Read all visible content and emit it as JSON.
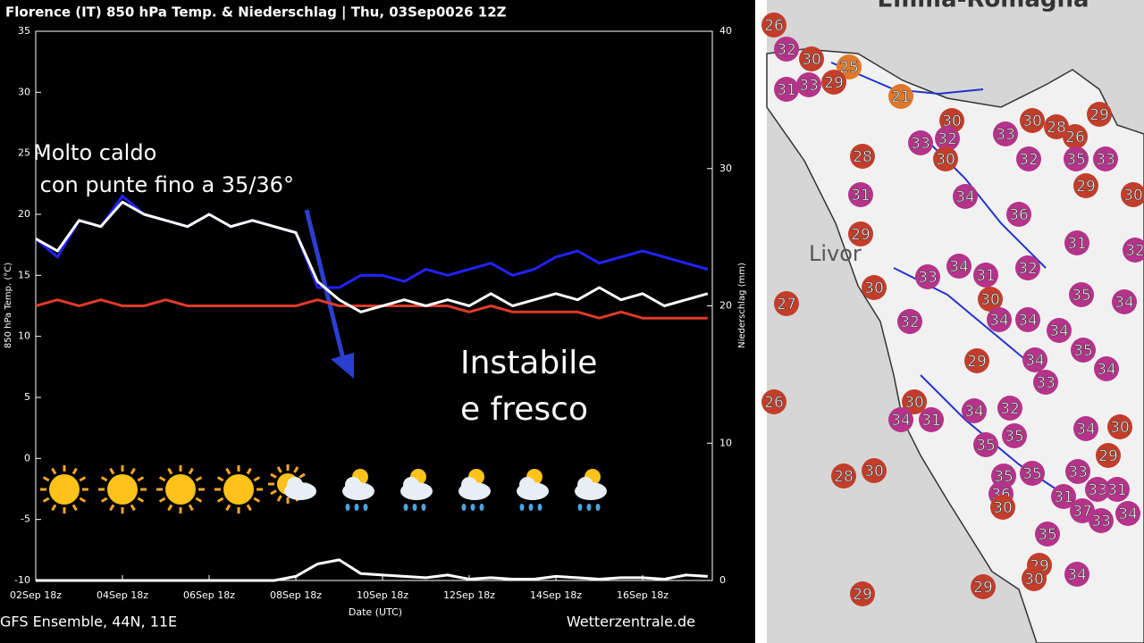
{
  "chart_data": {
    "type": "line",
    "title": "Florence  (IT)  850 hPa Temp. & Niederschlag | Thu, 03Sep0026 12Z",
    "y_label": "850 hPa Temp. (°C)",
    "y2_label": "Niederschlag (mm)",
    "x_label": "Date (UTC)",
    "footer_left": "GFS Ensemble, 44N, 11E",
    "footer_right": "Wetterzentrale.de",
    "annotations": [
      "Molto caldo",
      " con punte fino a 35/36°",
      "Instabile",
      "e fresco"
    ],
    "categories": [
      "02Sep 18z",
      null,
      null,
      null,
      "04Sep 18z",
      null,
      null,
      null,
      "06Sep 18z",
      null,
      null,
      null,
      "08Sep 18z",
      null,
      null,
      null,
      "10Sep 18z",
      null,
      null,
      null,
      "12Sep 18z",
      null,
      null,
      null,
      "14Sep 18z",
      null,
      null,
      null,
      "16Sep 18z",
      null,
      null,
      null
    ],
    "series": [
      {
        "color": "#2222ff",
        "values": [
          18,
          16.5,
          19.5,
          19,
          21.5,
          20,
          19.5,
          19,
          20,
          19,
          19.5,
          19,
          18.5,
          14,
          14,
          15,
          15,
          14.5,
          15.5,
          15,
          15.5,
          16,
          15,
          15.5,
          16.5,
          17,
          16,
          16.5,
          17,
          16.5,
          16,
          15.5
        ]
      },
      {
        "color": "#e03a2a",
        "values": [
          12.5,
          13,
          12.5,
          13,
          12.5,
          12.5,
          13,
          12.5,
          12.5,
          12.5,
          12.5,
          12.5,
          12.5,
          13,
          12.5,
          12.5,
          12.5,
          12.5,
          12.5,
          12.5,
          12,
          12.5,
          12,
          12,
          12,
          12,
          11.5,
          12,
          11.5,
          11.5,
          11.5,
          11.5
        ]
      },
      {
        "color": "#ffffff",
        "values": [
          18,
          17,
          19.5,
          19,
          21,
          20,
          19.5,
          19,
          20,
          19,
          19.5,
          19,
          18.5,
          14.5,
          13,
          12,
          12.5,
          13,
          12.5,
          13,
          12.5,
          13.5,
          12.5,
          13,
          13.5,
          13,
          14,
          13,
          13.5,
          12.5,
          13,
          13.5
        ]
      },
      {
        "color": "#ffffff",
        "axis": "y2",
        "values": [
          0,
          0,
          0,
          0,
          0,
          0,
          0,
          0,
          0,
          0,
          0,
          0,
          0.3,
          1.2,
          1.5,
          0.5,
          0.4,
          0.3,
          0.2,
          0.4,
          0.1,
          0.2,
          0.1,
          0.1,
          0.3,
          0.2,
          0.1,
          0.2,
          0.2,
          0.1,
          0.4,
          0.3
        ]
      }
    ],
    "ylim": [
      -10,
      35
    ],
    "yticks": [
      -10,
      -5,
      0,
      5,
      10,
      15,
      20,
      25,
      30,
      35
    ],
    "y2lim": [
      0,
      40
    ],
    "y2ticks": [
      0,
      10,
      20,
      30,
      40
    ]
  },
  "map": {
    "labels": [
      "Emilia-Romagna",
      "Livor"
    ],
    "readings": [
      {
        "value": 26,
        "color": "#c33d2b"
      },
      {
        "value": 32,
        "color": "#b5338a"
      },
      {
        "value": 30,
        "color": "#c33d2b"
      },
      {
        "value": 25,
        "color": "#e0782a"
      },
      {
        "value": 31,
        "color": "#b5338a"
      },
      {
        "value": 33,
        "color": "#b5338a"
      },
      {
        "value": 29,
        "color": "#c33d2b"
      },
      {
        "value": 21,
        "color": "#e0782a"
      },
      {
        "value": 30,
        "color": "#c33d2b"
      },
      {
        "value": 30,
        "color": "#c33d2b"
      },
      {
        "value": 28,
        "color": "#c33d2b"
      },
      {
        "value": 29,
        "color": "#c33d2b"
      },
      {
        "value": 33,
        "color": "#b5338a"
      },
      {
        "value": 32,
        "color": "#b5338a"
      },
      {
        "value": 26,
        "color": "#c33d2b"
      },
      {
        "value": 35,
        "color": "#b5338a"
      },
      {
        "value": 33,
        "color": "#b5338a"
      },
      {
        "value": 32,
        "color": "#b5338a"
      },
      {
        "value": 30,
        "color": "#c33d2b"
      },
      {
        "value": 28,
        "color": "#c33d2b"
      },
      {
        "value": 33,
        "color": "#b5338a"
      },
      {
        "value": 31,
        "color": "#b5338a"
      },
      {
        "value": 29,
        "color": "#c33d2b"
      },
      {
        "value": 30,
        "color": "#c33d2b"
      },
      {
        "value": 32,
        "color": "#b5338a"
      },
      {
        "value": 29,
        "color": "#c33d2b"
      },
      {
        "value": 27,
        "color": "#c33d2b"
      },
      {
        "value": 30,
        "color": "#c33d2b"
      },
      {
        "value": 34,
        "color": "#b5338a"
      },
      {
        "value": 36,
        "color": "#b5338a"
      },
      {
        "value": 31,
        "color": "#b5338a"
      },
      {
        "value": 33,
        "color": "#b5338a"
      },
      {
        "value": 34,
        "color": "#b5338a"
      },
      {
        "value": 31,
        "color": "#b5338a"
      },
      {
        "value": 32,
        "color": "#b5338a"
      },
      {
        "value": 35,
        "color": "#b5338a"
      },
      {
        "value": 34,
        "color": "#b5338a"
      },
      {
        "value": 30,
        "color": "#c33d2b"
      },
      {
        "value": 32,
        "color": "#b5338a"
      },
      {
        "value": 34,
        "color": "#b5338a"
      },
      {
        "value": 34,
        "color": "#b5338a"
      },
      {
        "value": 34,
        "color": "#b5338a"
      },
      {
        "value": 35,
        "color": "#b5338a"
      },
      {
        "value": 34,
        "color": "#b5338a"
      },
      {
        "value": 29,
        "color": "#c33d2b"
      },
      {
        "value": 34,
        "color": "#b5338a"
      },
      {
        "value": 33,
        "color": "#b5338a"
      },
      {
        "value": 26,
        "color": "#c33d2b"
      },
      {
        "value": 30,
        "color": "#c33d2b"
      },
      {
        "value": 31,
        "color": "#b5338a"
      },
      {
        "value": 34,
        "color": "#b5338a"
      },
      {
        "value": 34,
        "color": "#b5338a"
      },
      {
        "value": 35,
        "color": "#b5338a"
      },
      {
        "value": 32,
        "color": "#b5338a"
      },
      {
        "value": 34,
        "color": "#b5338a"
      },
      {
        "value": 30,
        "color": "#c33d2b"
      },
      {
        "value": 29,
        "color": "#c33d2b"
      },
      {
        "value": 35,
        "color": "#b5338a"
      },
      {
        "value": 28,
        "color": "#c33d2b"
      },
      {
        "value": 30,
        "color": "#c33d2b"
      },
      {
        "value": 35,
        "color": "#b5338a"
      },
      {
        "value": 35,
        "color": "#b5338a"
      },
      {
        "value": 36,
        "color": "#b5338a"
      },
      {
        "value": 33,
        "color": "#b5338a"
      },
      {
        "value": 31,
        "color": "#b5338a"
      },
      {
        "value": 33,
        "color": "#b5338a"
      },
      {
        "value": 31,
        "color": "#b5338a"
      },
      {
        "value": 30,
        "color": "#c33d2b"
      },
      {
        "value": 37,
        "color": "#b5338a"
      },
      {
        "value": 33,
        "color": "#b5338a"
      },
      {
        "value": 34,
        "color": "#b5338a"
      },
      {
        "value": 35,
        "color": "#b5338a"
      },
      {
        "value": 29,
        "color": "#c33d2b"
      },
      {
        "value": 30,
        "color": "#c33d2b"
      },
      {
        "value": 34,
        "color": "#b5338a"
      },
      {
        "value": 29,
        "color": "#c33d2b"
      },
      {
        "value": 29,
        "color": "#c33d2b"
      }
    ]
  }
}
